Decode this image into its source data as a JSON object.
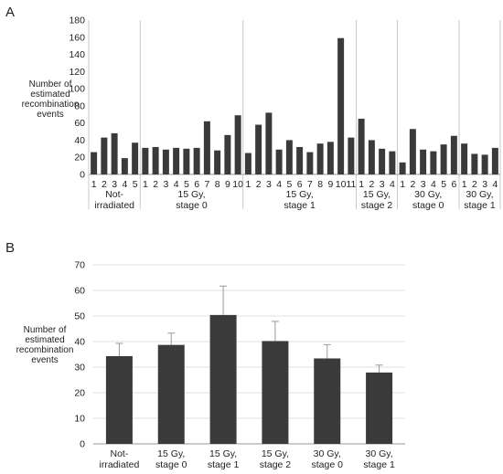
{
  "chart_data": [
    {
      "panel": "A",
      "type": "bar",
      "ylabel": [
        "Number of",
        "estimated",
        "recombination",
        "events"
      ],
      "ylim": [
        0,
        180
      ],
      "yticks": [
        0,
        20,
        40,
        60,
        80,
        100,
        120,
        140,
        160,
        180
      ],
      "grid": false,
      "bar_color": "#3a3a3a",
      "groups": [
        {
          "label": [
            "Not-",
            "irradiated"
          ],
          "categories": [
            "1",
            "2",
            "3",
            "4",
            "5"
          ],
          "values": [
            26,
            43,
            48,
            19,
            37
          ]
        },
        {
          "label": [
            "15 Gy,",
            "stage 0"
          ],
          "categories": [
            "1",
            "2",
            "3",
            "4",
            "5",
            "6",
            "7",
            "8",
            "9",
            "10"
          ],
          "values": [
            31,
            32,
            29,
            31,
            30,
            31,
            62,
            28,
            46,
            69
          ]
        },
        {
          "label": [
            "15 Gy,",
            "stage 1"
          ],
          "categories": [
            "1",
            "2",
            "3",
            "4",
            "5",
            "6",
            "7",
            "8",
            "9",
            "10",
            "11"
          ],
          "values": [
            25,
            58,
            72,
            29,
            40,
            32,
            26,
            36,
            38,
            159,
            43
          ]
        },
        {
          "label": [
            "15 Gy,",
            "stage 2"
          ],
          "categories": [
            "1",
            "2",
            "3",
            "4"
          ],
          "values": [
            65,
            40,
            30,
            27
          ]
        },
        {
          "label": [
            "30 Gy,",
            "stage 0"
          ],
          "categories": [
            "1",
            "2",
            "3",
            "4",
            "5",
            "6"
          ],
          "values": [
            14,
            53,
            29,
            27,
            35,
            45
          ]
        },
        {
          "label": [
            "30 Gy,",
            "stage 1"
          ],
          "categories": [
            "1",
            "2",
            "3",
            "4"
          ],
          "values": [
            36,
            24,
            23,
            31
          ]
        }
      ]
    },
    {
      "panel": "B",
      "type": "bar",
      "ylabel": [
        "Number of",
        "estimated",
        "recombination",
        "events"
      ],
      "ylim": [
        0,
        70
      ],
      "yticks": [
        0,
        10,
        20,
        30,
        40,
        50,
        60,
        70
      ],
      "grid": true,
      "bar_color": "#3a3a3a",
      "error_bars": true,
      "categories": [
        [
          "Not-",
          "irradiated"
        ],
        [
          "15 Gy,",
          "stage 0"
        ],
        [
          "15 Gy,",
          "stage 1"
        ],
        [
          "15 Gy,",
          "stage 2"
        ],
        [
          "30 Gy,",
          "stage 0"
        ],
        [
          "30 Gy,",
          "stage 1"
        ]
      ],
      "values": [
        34.3,
        38.7,
        50.4,
        40.2,
        33.4,
        27.9
      ],
      "errors": [
        5.0,
        4.6,
        11.3,
        7.7,
        5.4,
        2.9
      ]
    }
  ]
}
